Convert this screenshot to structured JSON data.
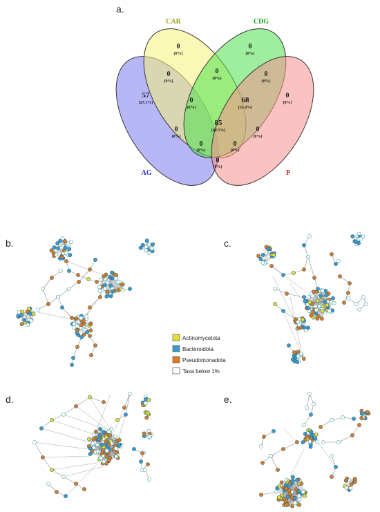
{
  "panels": {
    "a": "a.",
    "b": "b.",
    "c": "c.",
    "d": "d.",
    "e": "e."
  },
  "venn": {
    "sets": [
      {
        "key": "AG",
        "label": "AG",
        "color": "#7b7bf0",
        "label_color": "#2a2ad0"
      },
      {
        "key": "CAR",
        "label": "CAR",
        "color": "#f5f27a",
        "label_color": "#a09a20"
      },
      {
        "key": "CDG",
        "label": "CDG",
        "color": "#4fe04f",
        "label_color": "#1aa01a"
      },
      {
        "key": "P",
        "label": "P",
        "color": "#f79090",
        "label_color": "#e02020"
      }
    ],
    "regions": {
      "car_only": {
        "count": "0",
        "pct": "(0%)"
      },
      "cdg_only": {
        "count": "0",
        "pct": "(0%)"
      },
      "ag_only": {
        "count": "57",
        "pct": "(27.1%)"
      },
      "p_only": {
        "count": "0",
        "pct": "(0%)"
      },
      "car_cdg": {
        "count": "0",
        "pct": "(0%)"
      },
      "ag_car": {
        "count": "0",
        "pct": "(0%)"
      },
      "cdg_p": {
        "count": "0",
        "pct": "(0%)"
      },
      "ag_car_cdg": {
        "count": "0",
        "pct": "(0%)"
      },
      "car_cdg_p": {
        "count": "68",
        "pct": "(32.4%)"
      },
      "all": {
        "count": "85",
        "pct": "(40.5%)"
      },
      "ag_cdg": {
        "count": "0",
        "pct": "(0%)"
      },
      "car_p": {
        "count": "0",
        "pct": "(0%)"
      },
      "ag_cdg_p": {
        "count": "0",
        "pct": "(0%)"
      },
      "ag_car_p": {
        "count": "0",
        "pct": "(0%)"
      },
      "ag_p": {
        "count": "0",
        "pct": "(0%)"
      }
    }
  },
  "legend": [
    {
      "label": "Actinomycetota",
      "color": "#e8e030"
    },
    {
      "label": "Bacteroidota",
      "color": "#3b9ad0"
    },
    {
      "label": "Pseudomonadota",
      "color": "#e07a20"
    },
    {
      "label": "Taxa below 1%",
      "color": "#ffffff"
    }
  ],
  "colors": {
    "edge": "#8a8a8a",
    "node_stroke": "#2f5f6f",
    "white_node_stroke": "#4aa0a8"
  }
}
